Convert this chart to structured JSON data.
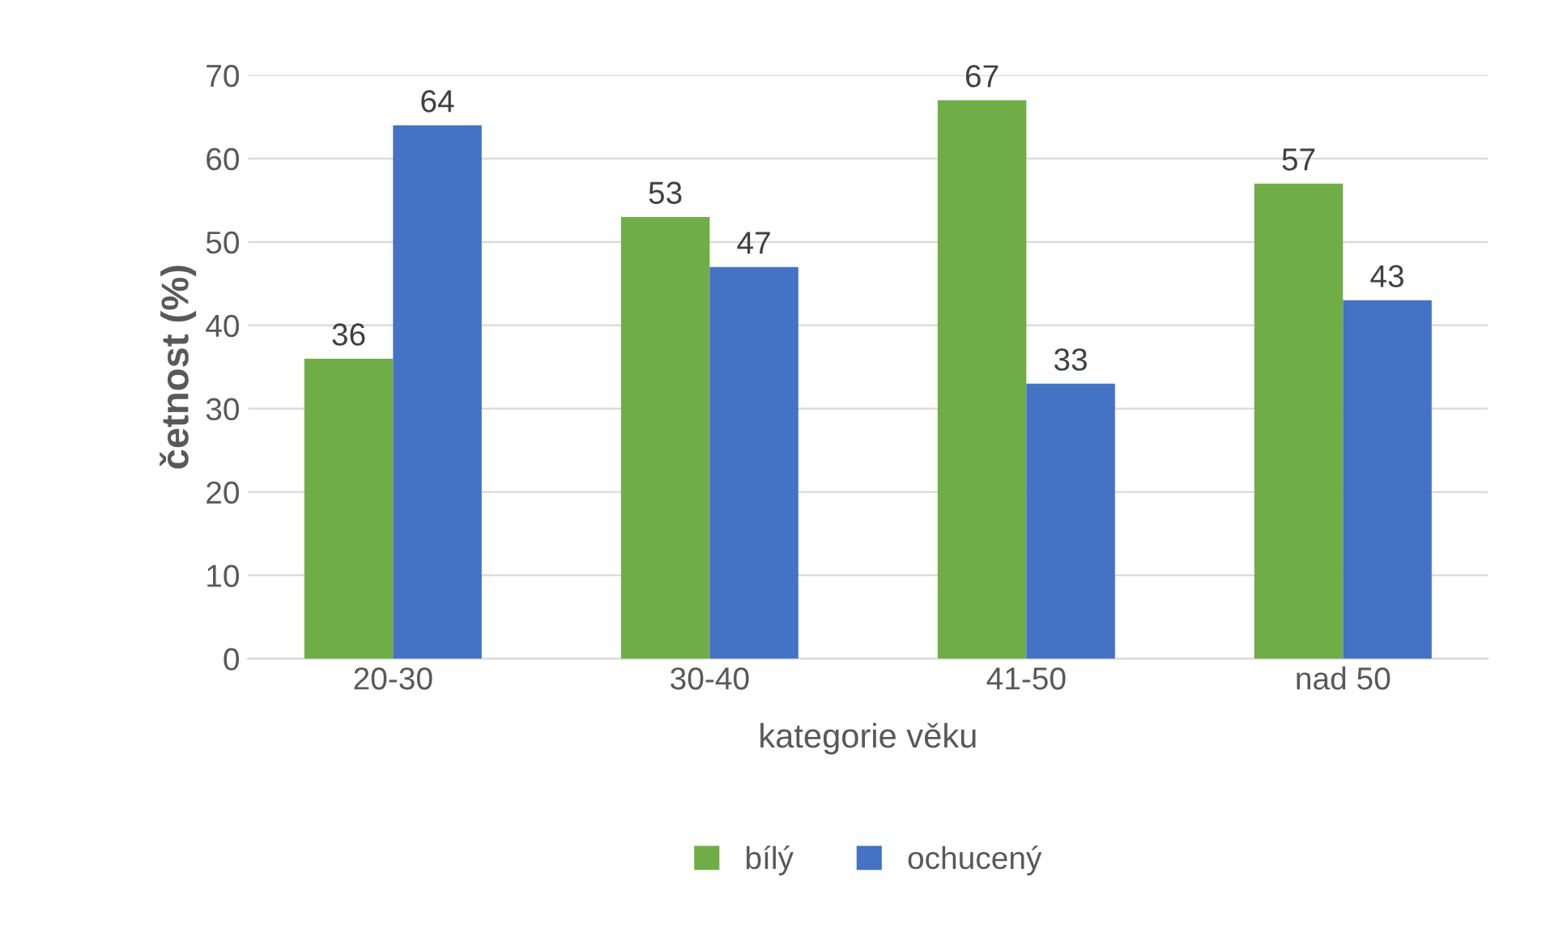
{
  "chart_data": {
    "type": "bar",
    "xlabel": "kategorie věku",
    "ylabel": "četnost (%)",
    "categories": [
      "20-30",
      "30-40",
      "41-50",
      "nad 50"
    ],
    "series": [
      {
        "name": "bílý",
        "color": "#70ad47",
        "values": [
          36,
          53,
          67,
          57
        ]
      },
      {
        "name": "ochucený",
        "color": "#4472c4",
        "values": [
          64,
          47,
          33,
          43
        ]
      }
    ],
    "ylim": [
      0,
      70
    ],
    "yticks": [
      0,
      10,
      20,
      30,
      40,
      50,
      60,
      70
    ],
    "grid": "y",
    "legend": "bottom",
    "data_labels": true
  }
}
